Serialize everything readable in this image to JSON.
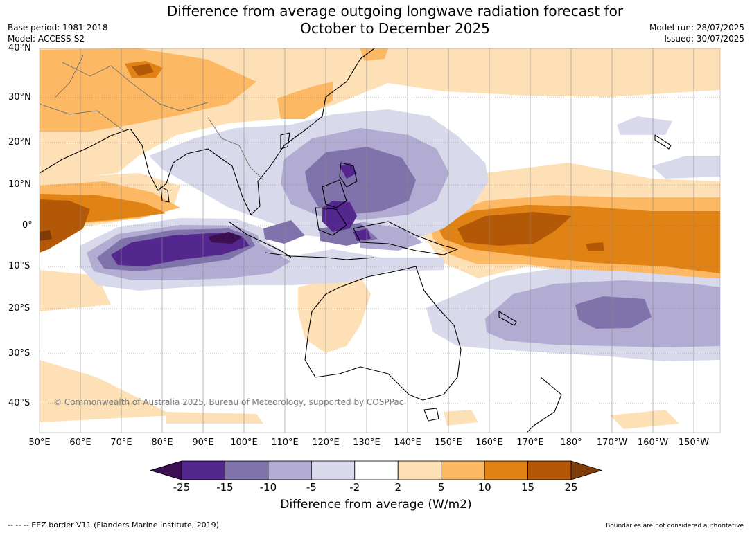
{
  "title_line1": "Difference from average outgoing longwave radiation forecast for",
  "title_line2": "October to December 2025",
  "base_period": "Base period: 1981-2018",
  "model": "Model: ACCESS-S2",
  "model_run": "Model run: 28/07/2025",
  "issued": "Issued: 30/07/2025",
  "copyright": "© Commonwealth of Australia 2025, Bureau of Meteorology, supported by COSPPac",
  "lat_labels": [
    "40°N",
    "30°N",
    "20°N",
    "10°N",
    "0°",
    "10°S",
    "20°S",
    "30°S",
    "40°S"
  ],
  "lon_labels": [
    "50°E",
    "60°E",
    "70°E",
    "80°E",
    "90°E",
    "100°E",
    "110°E",
    "120°E",
    "130°E",
    "140°E",
    "150°E",
    "160°E",
    "170°E",
    "180°",
    "170°W",
    "160°W",
    "150°W"
  ],
  "colorbar": {
    "ticks": [
      "-25",
      "-15",
      "-10",
      "-5",
      "-2",
      "2",
      "5",
      "10",
      "15",
      "25"
    ],
    "colors": [
      "#3c1053",
      "#54278f",
      "#8073ac",
      "#b2abd2",
      "#d8daeb",
      "#ffffff",
      "#fee0b6",
      "#fdb863",
      "#e08214",
      "#b35806",
      "#7f3b08"
    ],
    "label": "Difference from average (W/m2)"
  },
  "footer_left": "--  --  -- EEZ border V11 (Flanders Marine Institute, 2019).",
  "footer_right": "Boundaries are not considered authoritative"
}
